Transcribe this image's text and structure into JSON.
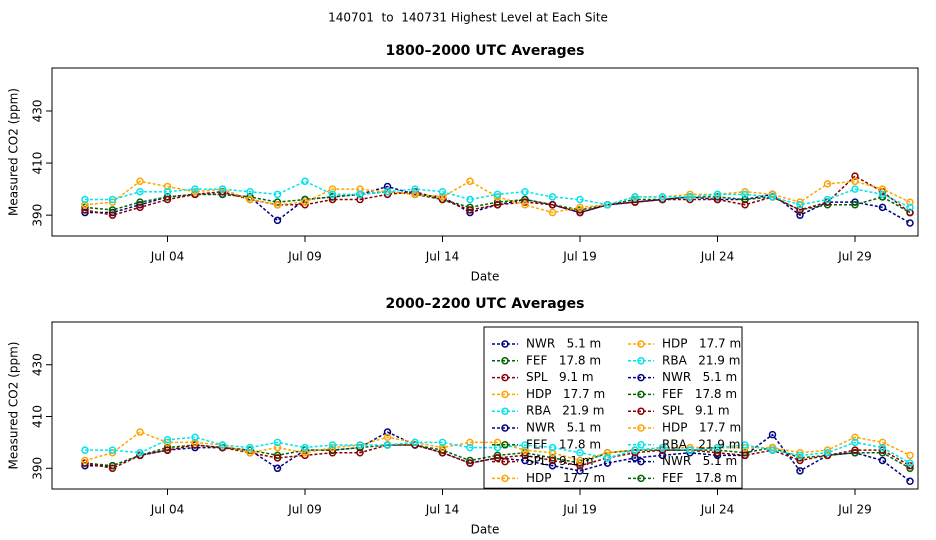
{
  "page_title": "140701  to  140731 Highest Level at Each Site",
  "chart_data": [
    {
      "type": "line",
      "title": "1800–2000 UTC Averages",
      "xlabel": "Date",
      "ylabel": "Measured CO2 (ppm)",
      "x": [
        "Jul 01",
        "Jul 02",
        "Jul 03",
        "Jul 04",
        "Jul 05",
        "Jul 06",
        "Jul 07",
        "Jul 08",
        "Jul 09",
        "Jul 10",
        "Jul 11",
        "Jul 12",
        "Jul 13",
        "Jul 14",
        "Jul 15",
        "Jul 16",
        "Jul 17",
        "Jul 18",
        "Jul 19",
        "Jul 20",
        "Jul 21",
        "Jul 22",
        "Jul 23",
        "Jul 24",
        "Jul 25",
        "Jul 26",
        "Jul 27",
        "Jul 28",
        "Jul 29",
        "Jul 30",
        "Jul 31"
      ],
      "xticks": [
        "Jul 04",
        "Jul 09",
        "Jul 14",
        "Jul 19",
        "Jul 24",
        "Jul 29"
      ],
      "ylim": [
        382,
        446.5
      ],
      "yticks": [
        390,
        410,
        430
      ],
      "series": [
        {
          "name": "NWR   5.1 m",
          "color": "#000080",
          "values": [
            391,
            391,
            394,
            397,
            398,
            398,
            397,
            388,
            396,
            397,
            398,
            401,
            398,
            397,
            391,
            394,
            396,
            394,
            391,
            394,
            395,
            396,
            397,
            396,
            396,
            398,
            390,
            395,
            395,
            393,
            387
          ]
        },
        {
          "name": "FEF   17.8 m",
          "color": "#006400",
          "values": [
            393,
            392,
            395,
            397,
            398,
            398,
            397,
            395,
            396,
            397,
            398,
            399,
            398,
            396,
            393,
            395,
            396,
            394,
            392,
            394,
            396,
            396,
            397,
            397,
            396,
            397,
            392,
            394,
            394,
            397,
            391
          ]
        },
        {
          "name": "SPL   9.1 m",
          "color": "#8b0000",
          "values": [
            392,
            390,
            393,
            396,
            398,
            399,
            396,
            394,
            394,
            396,
            396,
            398,
            399,
            396,
            392,
            394,
            395,
            394,
            391,
            394,
            395,
            396,
            396,
            396,
            394,
            397,
            392,
            395,
            405,
            399,
            391
          ]
        },
        {
          "name": "HDP   17.7 m",
          "color": "#ffa500",
          "values": [
            394,
            395,
            403,
            401,
            399,
            400,
            396,
            394,
            395,
            400,
            400,
            399,
            398,
            397,
            403,
            397,
            394,
            391,
            393,
            394,
            397,
            397,
            398,
            398,
            399,
            398,
            395,
            402,
            403,
            400,
            395
          ]
        },
        {
          "name": "RBA   21.9 m",
          "color": "#00e5ee",
          "values": [
            396,
            396,
            399,
            399,
            400,
            400,
            399,
            398,
            403,
            398,
            398,
            399,
            400,
            399,
            396,
            398,
            399,
            397,
            396,
            394,
            397,
            397,
            397,
            398,
            398,
            397,
            394,
            396,
            400,
            398,
            393
          ]
        }
      ]
    },
    {
      "type": "line",
      "title": "2000–2200 UTC Averages",
      "xlabel": "Date",
      "ylabel": "Measured CO2 (ppm)",
      "x": [
        "Jul 01",
        "Jul 02",
        "Jul 03",
        "Jul 04",
        "Jul 05",
        "Jul 06",
        "Jul 07",
        "Jul 08",
        "Jul 09",
        "Jul 10",
        "Jul 11",
        "Jul 12",
        "Jul 13",
        "Jul 14",
        "Jul 15",
        "Jul 16",
        "Jul 17",
        "Jul 18",
        "Jul 19",
        "Jul 20",
        "Jul 21",
        "Jul 22",
        "Jul 23",
        "Jul 24",
        "Jul 25",
        "Jul 26",
        "Jul 27",
        "Jul 28",
        "Jul 29",
        "Jul 30",
        "Jul 31"
      ],
      "xticks": [
        "Jul 04",
        "Jul 09",
        "Jul 14",
        "Jul 19",
        "Jul 24",
        "Jul 29"
      ],
      "ylim": [
        382,
        446.5
      ],
      "yticks": [
        390,
        410,
        430
      ],
      "series": [
        {
          "name": "NWR   5.1 m",
          "color": "#000080",
          "values": [
            391,
            391,
            395,
            397,
            398,
            398,
            397,
            390,
            397,
            397,
            398,
            404,
            399,
            396,
            392,
            394,
            393,
            391,
            389,
            392,
            394,
            395,
            396,
            395,
            395,
            403,
            389,
            395,
            396,
            393,
            385
          ]
        },
        {
          "name": "FEF   17.8 m",
          "color": "#006400",
          "values": [
            392,
            391,
            395,
            398,
            399,
            398,
            397,
            395,
            397,
            397,
            398,
            399,
            399,
            397,
            393,
            395,
            396,
            394,
            392,
            396,
            397,
            397,
            397,
            397,
            396,
            398,
            394,
            395,
            396,
            396,
            390
          ]
        },
        {
          "name": "SPL   9.1 m",
          "color": "#8b0000",
          "values": [
            392,
            390,
            395,
            397,
            399,
            398,
            396,
            394,
            395,
            396,
            396,
            399,
            399,
            396,
            392,
            394,
            395,
            393,
            391,
            394,
            396,
            397,
            397,
            396,
            395,
            397,
            393,
            395,
            397,
            397,
            391
          ]
        },
        {
          "name": "HDP   17.7 m",
          "color": "#ffa500",
          "values": [
            393,
            396,
            404,
            400,
            400,
            399,
            396,
            398,
            396,
            398,
            399,
            402,
            400,
            398,
            400,
            400,
            397,
            396,
            393,
            396,
            397,
            398,
            398,
            398,
            398,
            398,
            396,
            397,
            402,
            400,
            395
          ]
        },
        {
          "name": "RBA   21.9 m",
          "color": "#00e5ee",
          "values": [
            397,
            397,
            396,
            401,
            402,
            399,
            398,
            400,
            398,
            399,
            399,
            399,
            400,
            400,
            398,
            398,
            399,
            398,
            396,
            394,
            397,
            398,
            397,
            398,
            399,
            397,
            395,
            396,
            400,
            398,
            392
          ]
        }
      ],
      "legend": [
        {
          "name": "NWR   5.1 m",
          "color": "#000080"
        },
        {
          "name": "FEF   17.8 m",
          "color": "#006400"
        },
        {
          "name": "SPL   9.1 m",
          "color": "#8b0000"
        },
        {
          "name": "HDP   17.7 m",
          "color": "#ffa500"
        },
        {
          "name": "RBA   21.9 m",
          "color": "#00e5ee"
        },
        {
          "name": "NWR   5.1 m",
          "color": "#000080"
        },
        {
          "name": "FEF   17.8 m",
          "color": "#006400"
        },
        {
          "name": "SPL   9.1 m",
          "color": "#8b0000"
        },
        {
          "name": "HDP   17.7 m",
          "color": "#ffa500"
        },
        {
          "name": "HDP   17.7 m",
          "color": "#ffa500"
        },
        {
          "name": "RBA   21.9 m",
          "color": "#00e5ee"
        },
        {
          "name": "NWR   5.1 m",
          "color": "#000080"
        },
        {
          "name": "FEF   17.8 m",
          "color": "#006400"
        },
        {
          "name": "SPL   9.1 m",
          "color": "#8b0000"
        },
        {
          "name": "HDP   17.7 m",
          "color": "#ffa500"
        },
        {
          "name": "RBA   21.9 m",
          "color": "#00e5ee"
        },
        {
          "name": "NWR   5.1 m",
          "color": "#000080"
        },
        {
          "name": "FEF   17.8 m",
          "color": "#006400"
        }
      ]
    }
  ]
}
